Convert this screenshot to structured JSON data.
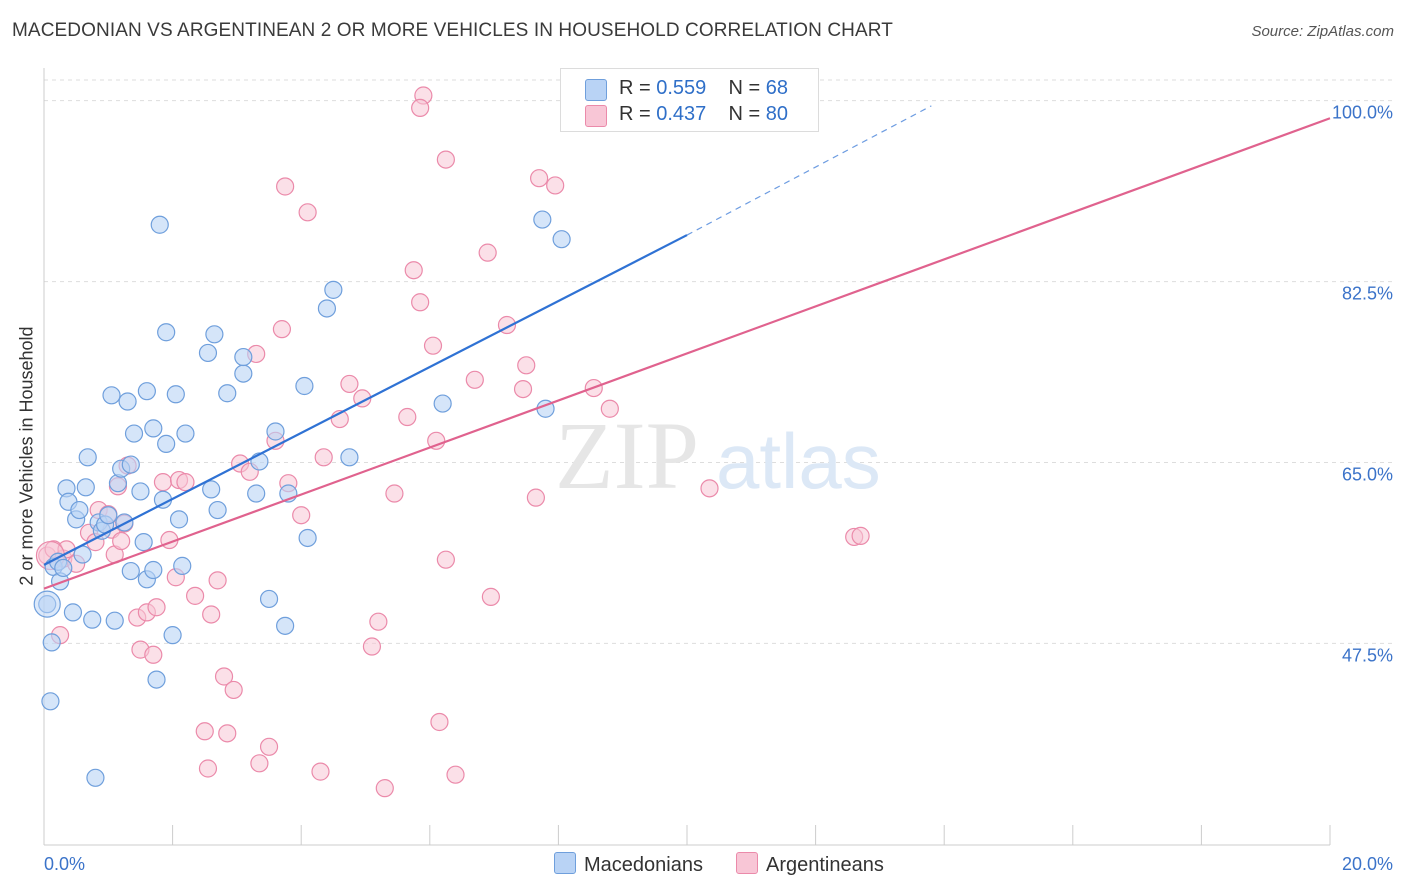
{
  "header": {
    "title": "MACEDONIAN VS ARGENTINEAN 2 OR MORE VEHICLES IN HOUSEHOLD CORRELATION CHART",
    "source_label": "Source: ZipAtlas.com"
  },
  "watermark": {
    "zip": "ZIP",
    "atlas": "atlas"
  },
  "legend": {
    "r_label": "R =",
    "n_label": "N =",
    "macedonian": {
      "r": "0.559",
      "n": "68"
    },
    "argentinean": {
      "r": "0.437",
      "n": "80"
    }
  },
  "colors": {
    "macedonian_fill": "#b9d3f5",
    "macedonian_stroke": "#6f9fdc",
    "macedonian_line": "#2f72d4",
    "argentinean_fill": "#f8c6d6",
    "argentinean_stroke": "#eb8aaa",
    "argentinean_line": "#e0628e",
    "tick_label": "#3b73c9"
  },
  "chart_data": {
    "type": "scatter",
    "title": "MACEDONIAN VS ARGENTINEAN 2 OR MORE VEHICLES IN HOUSEHOLD CORRELATION CHART",
    "xlabel": "",
    "ylabel": "2 or more Vehicles in Household",
    "xlim": [
      0,
      20
    ],
    "ylim": [
      28,
      102
    ],
    "x_tick_labels": [
      "0.0%",
      "20.0%"
    ],
    "y_ticks": [
      47.5,
      65.0,
      82.5,
      100.0
    ],
    "y_tick_labels": [
      "47.5%",
      "65.0%",
      "82.5%",
      "100.0%"
    ],
    "grid": true,
    "legend_position": "top-center",
    "series": [
      {
        "name": "Macedonians",
        "r": 0.559,
        "n": 68,
        "trend": {
          "x0": 0,
          "y0": 55.1,
          "x1": 10,
          "y1": 87.0,
          "dashed_to_x": 13.8,
          "dashed_to_y": 99.5
        },
        "points": [
          [
            0.05,
            51.3
          ],
          [
            0.1,
            41.9
          ],
          [
            0.12,
            47.6
          ],
          [
            0.15,
            54.9
          ],
          [
            0.22,
            55.4
          ],
          [
            0.25,
            53.5
          ],
          [
            0.3,
            54.8
          ],
          [
            0.35,
            62.5
          ],
          [
            0.38,
            61.2
          ],
          [
            0.45,
            50.5
          ],
          [
            0.5,
            59.5
          ],
          [
            0.55,
            60.4
          ],
          [
            0.6,
            56.1
          ],
          [
            0.65,
            62.6
          ],
          [
            0.68,
            65.5
          ],
          [
            0.75,
            49.8
          ],
          [
            0.8,
            34.5
          ],
          [
            0.85,
            59.2
          ],
          [
            0.9,
            58.4
          ],
          [
            0.95,
            59.0
          ],
          [
            1.0,
            59.9
          ],
          [
            1.05,
            71.5
          ],
          [
            1.1,
            49.7
          ],
          [
            1.15,
            63.0
          ],
          [
            1.2,
            64.4
          ],
          [
            1.25,
            59.2
          ],
          [
            1.3,
            70.9
          ],
          [
            1.35,
            54.5
          ],
          [
            1.4,
            67.8
          ],
          [
            1.5,
            62.2
          ],
          [
            1.55,
            57.3
          ],
          [
            1.6,
            71.9
          ],
          [
            1.6,
            53.7
          ],
          [
            1.7,
            68.3
          ],
          [
            1.7,
            54.6
          ],
          [
            1.75,
            44.0
          ],
          [
            1.8,
            88.0
          ],
          [
            1.85,
            61.4
          ],
          [
            1.9,
            66.8
          ],
          [
            1.9,
            77.6
          ],
          [
            2.0,
            48.3
          ],
          [
            2.05,
            71.6
          ],
          [
            2.1,
            59.5
          ],
          [
            2.15,
            55.0
          ],
          [
            2.2,
            67.8
          ],
          [
            2.55,
            75.6
          ],
          [
            2.6,
            62.4
          ],
          [
            2.65,
            77.4
          ],
          [
            2.7,
            60.4
          ],
          [
            2.85,
            71.7
          ],
          [
            3.1,
            73.6
          ],
          [
            3.1,
            75.2
          ],
          [
            3.3,
            62.0
          ],
          [
            3.35,
            65.1
          ],
          [
            3.5,
            51.8
          ],
          [
            3.6,
            68.0
          ],
          [
            3.75,
            49.2
          ],
          [
            4.05,
            72.4
          ],
          [
            4.1,
            57.7
          ],
          [
            4.4,
            79.9
          ],
          [
            4.5,
            81.7
          ],
          [
            4.75,
            65.5
          ],
          [
            7.8,
            70.2
          ],
          [
            7.75,
            88.5
          ],
          [
            8.05,
            86.6
          ],
          [
            6.2,
            70.7
          ],
          [
            3.8,
            62.0
          ],
          [
            1.35,
            64.8
          ]
        ]
      },
      {
        "name": "Argentineans",
        "r": 0.437,
        "n": 80,
        "trend": {
          "x0": 0,
          "y0": 52.8,
          "x1": 20,
          "y1": 98.3
        },
        "points": [
          [
            0.05,
            56.0
          ],
          [
            0.15,
            56.6
          ],
          [
            0.25,
            48.3
          ],
          [
            0.3,
            55.7
          ],
          [
            0.35,
            56.6
          ],
          [
            0.5,
            55.2
          ],
          [
            0.7,
            58.2
          ],
          [
            0.8,
            57.3
          ],
          [
            0.85,
            60.4
          ],
          [
            1.0,
            60.0
          ],
          [
            1.05,
            58.5
          ],
          [
            1.1,
            56.1
          ],
          [
            1.15,
            62.7
          ],
          [
            1.2,
            57.4
          ],
          [
            1.25,
            59.1
          ],
          [
            1.3,
            64.7
          ],
          [
            1.45,
            50.0
          ],
          [
            1.5,
            46.9
          ],
          [
            1.6,
            50.5
          ],
          [
            1.7,
            46.4
          ],
          [
            1.75,
            51.0
          ],
          [
            1.85,
            63.1
          ],
          [
            1.95,
            57.5
          ],
          [
            2.05,
            53.9
          ],
          [
            2.1,
            63.3
          ],
          [
            2.2,
            63.1
          ],
          [
            2.35,
            52.1
          ],
          [
            2.5,
            39.0
          ],
          [
            2.55,
            35.4
          ],
          [
            2.6,
            50.3
          ],
          [
            2.7,
            53.6
          ],
          [
            2.8,
            44.3
          ],
          [
            2.85,
            38.8
          ],
          [
            2.95,
            43.0
          ],
          [
            3.05,
            64.9
          ],
          [
            3.2,
            64.1
          ],
          [
            3.3,
            75.5
          ],
          [
            3.35,
            35.9
          ],
          [
            3.5,
            37.5
          ],
          [
            3.6,
            67.1
          ],
          [
            3.7,
            77.9
          ],
          [
            3.75,
            91.7
          ],
          [
            3.8,
            63.0
          ],
          [
            4.0,
            59.9
          ],
          [
            4.1,
            89.2
          ],
          [
            4.3,
            35.1
          ],
          [
            4.35,
            65.5
          ],
          [
            4.6,
            69.2
          ],
          [
            4.75,
            72.6
          ],
          [
            4.95,
            71.2
          ],
          [
            5.1,
            47.2
          ],
          [
            5.2,
            49.6
          ],
          [
            5.3,
            33.5
          ],
          [
            5.45,
            62.0
          ],
          [
            5.65,
            69.4
          ],
          [
            5.75,
            83.6
          ],
          [
            5.85,
            80.5
          ],
          [
            6.05,
            76.3
          ],
          [
            6.1,
            67.1
          ],
          [
            6.15,
            39.9
          ],
          [
            6.25,
            55.6
          ],
          [
            6.4,
            34.8
          ],
          [
            6.7,
            73.0
          ],
          [
            6.9,
            85.3
          ],
          [
            6.95,
            52.0
          ],
          [
            7.2,
            78.3
          ],
          [
            7.45,
            72.1
          ],
          [
            7.5,
            74.4
          ],
          [
            7.65,
            61.6
          ],
          [
            7.7,
            92.5
          ],
          [
            7.95,
            91.8
          ],
          [
            8.55,
            72.2
          ],
          [
            8.8,
            70.2
          ],
          [
            10.35,
            62.5
          ],
          [
            12.6,
            57.8
          ],
          [
            12.7,
            57.9
          ],
          [
            11.8,
            101.8
          ],
          [
            5.9,
            100.5
          ],
          [
            5.85,
            99.3
          ],
          [
            6.25,
            94.3
          ]
        ]
      }
    ]
  }
}
